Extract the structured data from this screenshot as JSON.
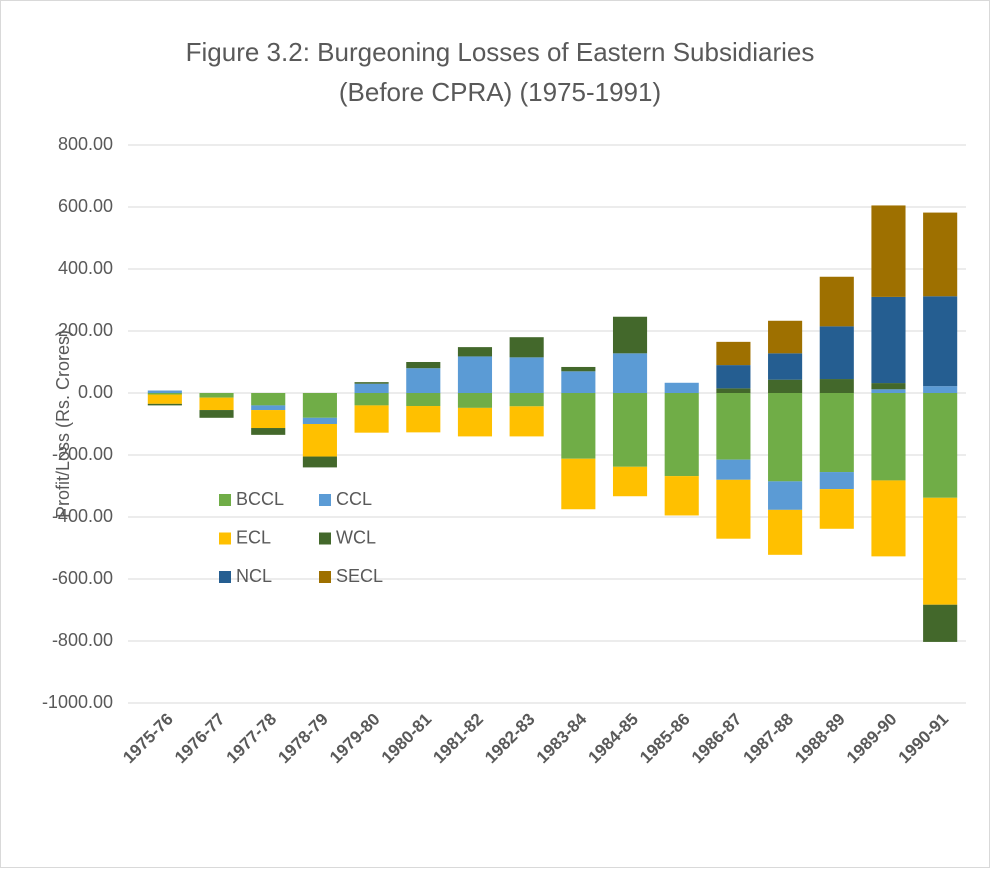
{
  "chart_data": {
    "type": "stacked_bar",
    "title": [
      "Figure 3.2: Burgeoning Losses of Eastern Subsidiaries",
      "(Before CPRA) (1975-1991)"
    ],
    "y_label": "Profit/Loss (Rs. Crores)",
    "categories": [
      "1975-76",
      "1976-77",
      "1977-78",
      "1978-79",
      "1979-80",
      "1980-81",
      "1981-82",
      "1982-83",
      "1983-84",
      "1984-85",
      "1985-86",
      "1986-87",
      "1987-88",
      "1988-89",
      "1989-90",
      "1990-91"
    ],
    "series": [
      {
        "name": "BCCL",
        "color": "#70ad47",
        "values": [
          -5,
          -15,
          -40,
          -80,
          -40,
          -42,
          -48,
          -43,
          -212,
          -238,
          -268,
          -215,
          -285,
          -255,
          -282,
          -338
        ]
      },
      {
        "name": "CCL",
        "color": "#5b9bd5",
        "values": [
          8,
          0,
          -15,
          -20,
          30,
          80,
          118,
          115,
          70,
          128,
          33,
          -65,
          -92,
          -55,
          12,
          22
        ]
      },
      {
        "name": "ECL",
        "color": "#ffc000",
        "values": [
          -30,
          -40,
          -58,
          -105,
          -88,
          -85,
          -92,
          -97,
          -163,
          -95,
          -127,
          -190,
          -145,
          -128,
          -245,
          -345
        ]
      },
      {
        "name": "WCL",
        "color": "#43682b",
        "values": [
          -5,
          -25,
          -22,
          -35,
          5,
          20,
          30,
          65,
          14,
          118,
          0,
          15,
          43,
          45,
          20,
          -120
        ]
      },
      {
        "name": "NCL",
        "color": "#255e91",
        "values": [
          0,
          0,
          0,
          0,
          0,
          0,
          0,
          0,
          0,
          0,
          0,
          75,
          85,
          170,
          278,
          290
        ]
      },
      {
        "name": "SECL",
        "color": "#9e7000",
        "values": [
          0,
          0,
          0,
          0,
          0,
          0,
          0,
          0,
          0,
          0,
          0,
          75,
          105,
          160,
          295,
          270
        ]
      }
    ],
    "ylim": [
      -1000,
      800
    ],
    "yticks": [
      {
        "value": -1000,
        "label": "-1000.00"
      },
      {
        "value": -800,
        "label": "-800.00"
      },
      {
        "value": -600,
        "label": "-600.00"
      },
      {
        "value": -400,
        "label": "-400.00"
      },
      {
        "value": -200,
        "label": "-200.00"
      },
      {
        "value": 0,
        "label": "0.00"
      },
      {
        "value": 200,
        "label": "200.00"
      },
      {
        "value": 400,
        "label": "400.00"
      },
      {
        "value": 600,
        "label": "600.00"
      },
      {
        "value": 800,
        "label": "800.00"
      }
    ],
    "grid": true,
    "legend": "left"
  }
}
